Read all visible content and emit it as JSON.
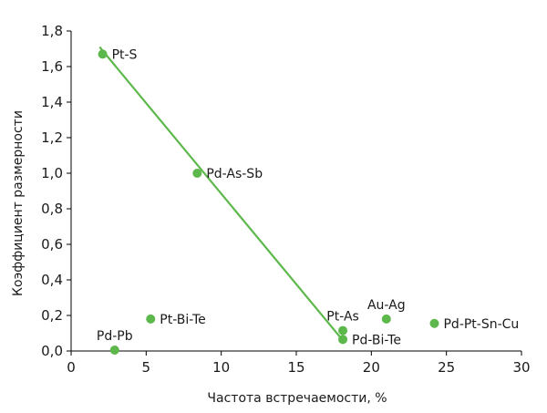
{
  "chart_data": {
    "type": "scatter",
    "xlabel": "Частота встречаемости, %",
    "ylabel": "Коэффициент размерности",
    "xlim": [
      0,
      30
    ],
    "ylim": [
      0,
      1.8
    ],
    "x_ticks": [
      0,
      5,
      10,
      15,
      20,
      25,
      30
    ],
    "x_tick_labels": [
      "0",
      "5",
      "10",
      "15",
      "20",
      "25",
      "30"
    ],
    "y_ticks": [
      0,
      0.2,
      0.4,
      0.6,
      0.8,
      1.0,
      1.2,
      1.4,
      1.6,
      1.8
    ],
    "y_tick_labels": [
      "0,0",
      "0,2",
      "0,4",
      "0,6",
      "0,8",
      "1,0",
      "1,2",
      "1,4",
      "1,6",
      "1,8"
    ],
    "grid": false,
    "point_color": "#5cb84a",
    "line_color": "#5cb84a",
    "points": [
      {
        "label": "Pt-S",
        "x": 2.1,
        "y": 1.67,
        "label_pos": "right"
      },
      {
        "label": "Pd-As-Sb",
        "x": 8.4,
        "y": 1.0,
        "label_pos": "right"
      },
      {
        "label": "Pt-Bi-Te",
        "x": 5.3,
        "y": 0.18,
        "label_pos": "right"
      },
      {
        "label": "Pd-Pb",
        "x": 2.9,
        "y": 0.005,
        "label_pos": "top"
      },
      {
        "label": "Pt-As",
        "x": 18.1,
        "y": 0.115,
        "label_pos": "top"
      },
      {
        "label": "Pd-Bi-Te",
        "x": 18.1,
        "y": 0.065,
        "label_pos": "right"
      },
      {
        "label": "Au-Ag",
        "x": 21.0,
        "y": 0.18,
        "label_pos": "top"
      },
      {
        "label": "Pd-Pt-Sn-Cu",
        "x": 24.2,
        "y": 0.155,
        "label_pos": "right"
      }
    ],
    "trendline": {
      "x": [
        1.9,
        18.1
      ],
      "y": [
        1.71,
        0.06
      ]
    }
  }
}
